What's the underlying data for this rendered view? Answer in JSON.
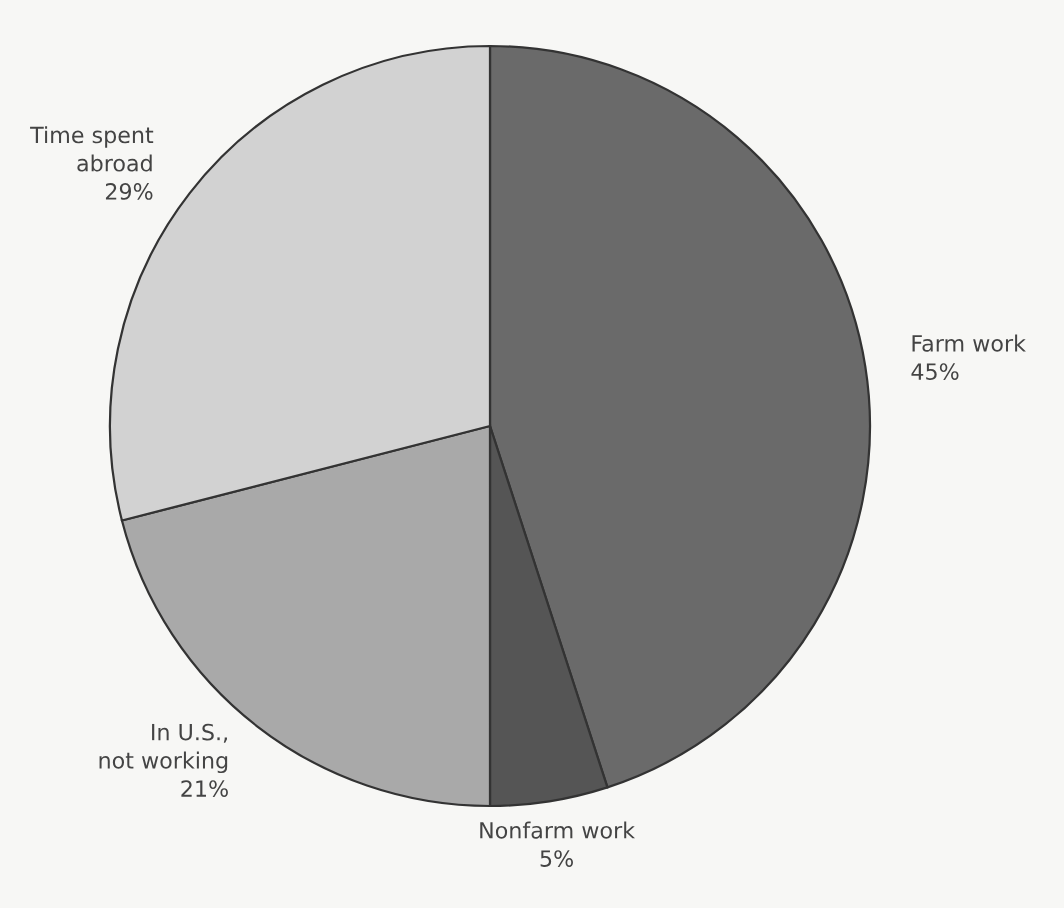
{
  "chart_data": {
    "type": "pie",
    "categories": [
      "Farm work",
      "Nonfarm work",
      "In U.S.,\nnot working",
      "Time spent\nabroad"
    ],
    "values": [
      45,
      5,
      21,
      29
    ],
    "colors": [
      "#6a6a6a",
      "#555555",
      "#a9a9a9",
      "#d2d2d2"
    ],
    "value_labels": [
      "45%",
      "5%",
      "21%",
      "29%"
    ]
  }
}
